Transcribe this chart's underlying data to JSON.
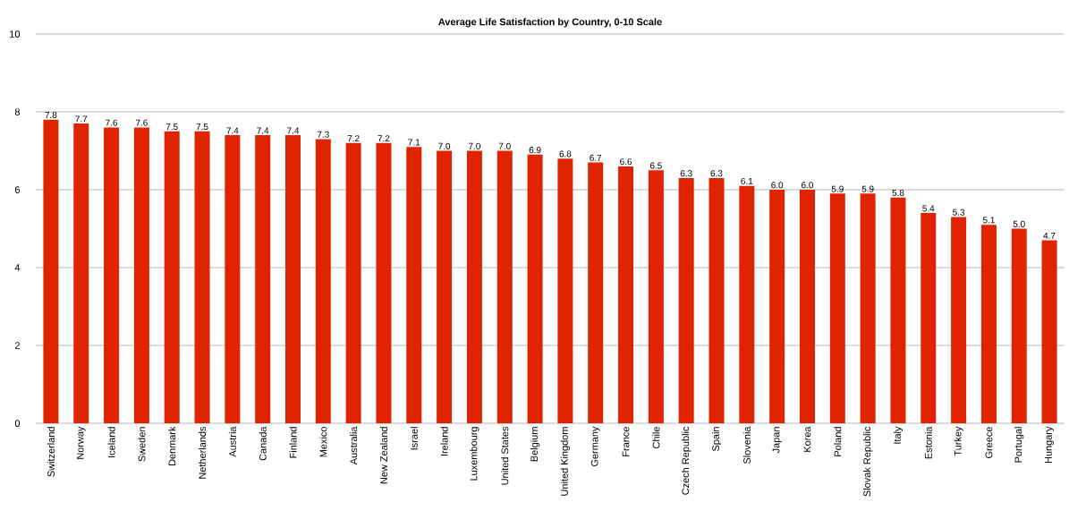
{
  "chart_data": {
    "type": "bar",
    "title": "Average Life Satisfaction by Country, 0-10 Scale",
    "categories": [
      "Switzerland",
      "Norway",
      "Iceland",
      "Sweden",
      "Denmark",
      "Netherlands",
      "Austria",
      "Canada",
      "Finland",
      "Mexico",
      "Australia",
      "New Zealand",
      "Israel",
      "Ireland",
      "Luxembourg",
      "United States",
      "Belgium",
      "United Kingdom",
      "Germany",
      "France",
      "Chile",
      "Czech Republic",
      "Spain",
      "Slovenia",
      "Japan",
      "Korea",
      "Poland",
      "Slovak Republic",
      "Italy",
      "Estonia",
      "Turkey",
      "Greece",
      "Portugal",
      "Hungary"
    ],
    "values": [
      7.8,
      7.7,
      7.6,
      7.6,
      7.5,
      7.5,
      7.4,
      7.4,
      7.4,
      7.3,
      7.2,
      7.2,
      7.1,
      7.0,
      7.0,
      7.0,
      6.9,
      6.8,
      6.7,
      6.6,
      6.5,
      6.3,
      6.3,
      6.1,
      6.0,
      6.0,
      5.9,
      5.9,
      5.8,
      5.4,
      5.3,
      5.1,
      5.0,
      4.7
    ],
    "value_labels": [
      "7.8",
      "7.7",
      "7.6",
      "7.6",
      "7.5",
      "7.5",
      "7.4",
      "7.4",
      "7.4",
      "7.3",
      "7.2",
      "7.2",
      "7.1",
      "7.0",
      "7.0",
      "7.0",
      "6.9",
      "6.8",
      "6.7",
      "6.6",
      "6.5",
      "6.3",
      "6.3",
      "6.1",
      "6.0",
      "6.0",
      "5.9",
      "5.9",
      "5.8",
      "5.4",
      "5.3",
      "5.1",
      "5.0",
      "4.7"
    ],
    "color": "#e02400",
    "ylim": [
      0,
      10
    ],
    "yticks": [
      0,
      2,
      4,
      6,
      8,
      10
    ],
    "grid": "y"
  }
}
